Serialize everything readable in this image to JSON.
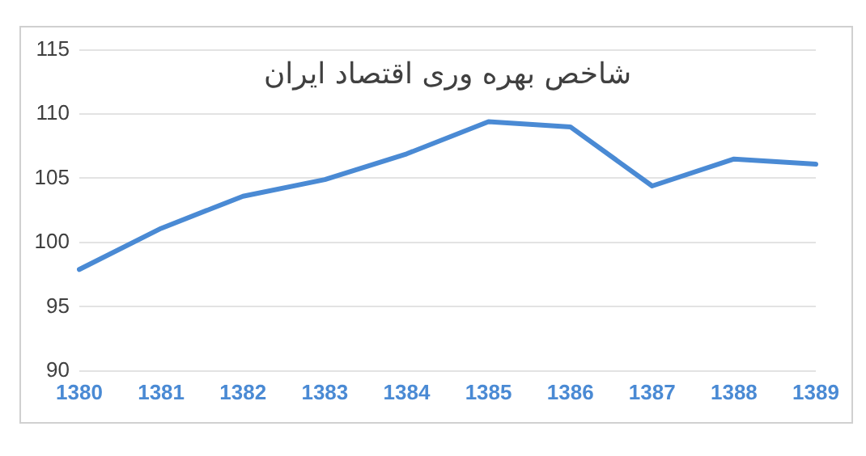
{
  "chart_data": {
    "type": "line",
    "title": "شاخص بهره وری اقتصاد ایران",
    "categories": [
      "1380",
      "1381",
      "1382",
      "1383",
      "1384",
      "1385",
      "1386",
      "1387",
      "1388",
      "1389"
    ],
    "series": [
      {
        "color": "#4a8ad4",
        "values": [
          97.9,
          101.1,
          103.6,
          104.9,
          106.9,
          109.4,
          109.0,
          104.4,
          106.5,
          106.1
        ]
      }
    ],
    "ylim": [
      90,
      115
    ],
    "yticks": [
      90,
      95,
      100,
      105,
      110,
      115
    ],
    "grid": "y",
    "legend": false,
    "marker": "none",
    "line_style": "solid"
  }
}
